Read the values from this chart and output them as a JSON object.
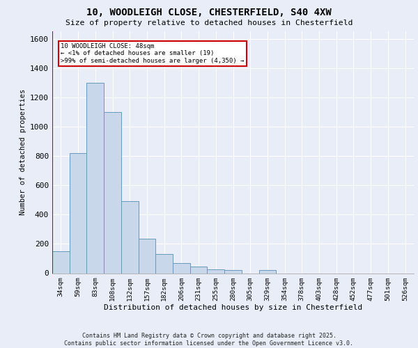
{
  "title_line1": "10, WOODLEIGH CLOSE, CHESTERFIELD, S40 4XW",
  "title_line2": "Size of property relative to detached houses in Chesterfield",
  "xlabel": "Distribution of detached houses by size in Chesterfield",
  "ylabel": "Number of detached properties",
  "footer_line1": "Contains HM Land Registry data © Crown copyright and database right 2025.",
  "footer_line2": "Contains public sector information licensed under the Open Government Licence v3.0.",
  "annotation_line1": "10 WOODLEIGH CLOSE: 48sqm",
  "annotation_line2": "← <1% of detached houses are smaller (19)",
  "annotation_line3": ">99% of semi-detached houses are larger (4,350) →",
  "bar_color": "#c8d8ea",
  "bar_edge_color": "#6699bb",
  "categories": [
    "34sqm",
    "59sqm",
    "83sqm",
    "108sqm",
    "132sqm",
    "157sqm",
    "182sqm",
    "206sqm",
    "231sqm",
    "255sqm",
    "280sqm",
    "305sqm",
    "329sqm",
    "354sqm",
    "378sqm",
    "403sqm",
    "428sqm",
    "452sqm",
    "477sqm",
    "501sqm",
    "526sqm"
  ],
  "values": [
    150,
    820,
    1300,
    1100,
    490,
    235,
    130,
    70,
    45,
    25,
    20,
    0,
    20,
    0,
    0,
    0,
    0,
    0,
    0,
    0,
    0
  ],
  "ylim": [
    0,
    1650
  ],
  "yticks": [
    0,
    200,
    400,
    600,
    800,
    1000,
    1200,
    1400,
    1600
  ],
  "background_color": "#e8edf8",
  "grid_color": "#ffffff",
  "red_line_color": "#cc0000",
  "annotation_box_color": "#ffffff",
  "annotation_box_edge": "#cc0000"
}
